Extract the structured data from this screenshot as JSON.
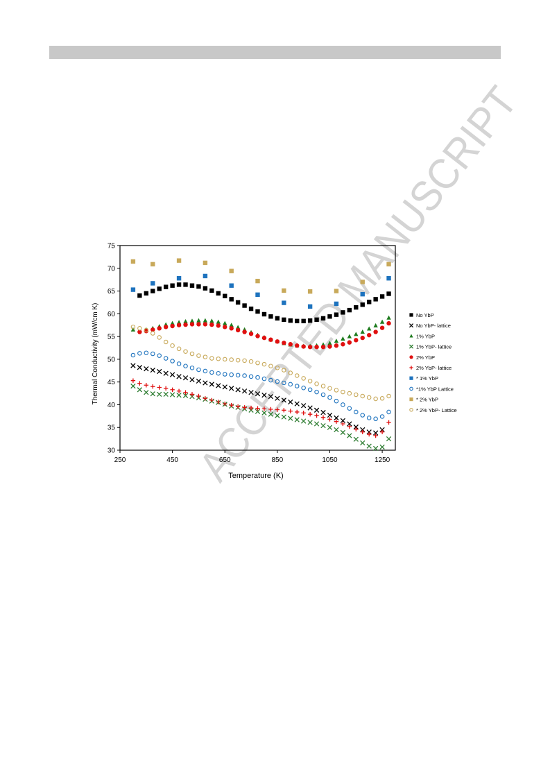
{
  "watermark": {
    "text": "ACCEPTED MANUSCRIPT",
    "color": "#d4d4d4"
  },
  "chart_data": {
    "type": "scatter",
    "title": "",
    "xlabel": "Temperature (K)",
    "ylabel": "Thermal Conductivity (mW/cm K)",
    "xlim": [
      250,
      1300
    ],
    "ylim": [
      30,
      75
    ],
    "xticks": [
      250,
      450,
      650,
      850,
      1050,
      1250
    ],
    "yticks": [
      30,
      35,
      40,
      45,
      50,
      55,
      60,
      65,
      70,
      75
    ],
    "legend_position": "right",
    "grid": false,
    "series": [
      {
        "name": "No YbP",
        "marker": "square",
        "color": "#000000",
        "x": [
          325,
          350,
          375,
          400,
          425,
          450,
          475,
          500,
          525,
          550,
          575,
          600,
          625,
          650,
          675,
          700,
          725,
          750,
          775,
          800,
          825,
          850,
          875,
          900,
          925,
          950,
          975,
          1000,
          1025,
          1050,
          1075,
          1100,
          1125,
          1150,
          1175,
          1200,
          1225,
          1250,
          1275
        ],
        "y": [
          64.0,
          64.5,
          65.0,
          65.5,
          65.9,
          66.2,
          66.4,
          66.4,
          66.2,
          66.0,
          65.6,
          65.1,
          64.5,
          63.9,
          63.2,
          62.5,
          61.8,
          61.1,
          60.5,
          59.9,
          59.4,
          59.0,
          58.7,
          58.5,
          58.4,
          58.4,
          58.5,
          58.7,
          59.0,
          59.4,
          59.8,
          60.3,
          60.8,
          61.4,
          62.0,
          62.6,
          63.2,
          63.8,
          64.4
        ]
      },
      {
        "name": "No YbP- lattice",
        "marker": "x",
        "color": "#000000",
        "x": [
          300,
          325,
          350,
          375,
          400,
          425,
          450,
          475,
          500,
          525,
          550,
          575,
          600,
          625,
          650,
          675,
          700,
          725,
          750,
          775,
          800,
          825,
          850,
          875,
          900,
          925,
          950,
          975,
          1000,
          1025,
          1050,
          1075,
          1100,
          1125,
          1150,
          1175,
          1200,
          1225,
          1250
        ],
        "y": [
          48.6,
          48.2,
          47.9,
          47.6,
          47.3,
          46.9,
          46.6,
          46.2,
          45.9,
          45.5,
          45.2,
          44.8,
          44.5,
          44.2,
          43.9,
          43.6,
          43.3,
          43.0,
          42.7,
          42.4,
          42.1,
          41.8,
          41.4,
          41.0,
          40.6,
          40.2,
          39.8,
          39.3,
          38.8,
          38.3,
          37.7,
          37.1,
          36.5,
          35.8,
          35.1,
          34.5,
          34.0,
          33.8,
          34.5
        ]
      },
      {
        "name": "1% YbP",
        "marker": "triangle",
        "color": "#1e7b1e",
        "x": [
          300,
          350,
          375,
          400,
          425,
          450,
          475,
          500,
          525,
          550,
          575,
          600,
          625,
          650,
          675,
          700,
          725,
          750,
          775,
          800,
          825,
          850,
          875,
          900,
          925,
          950,
          975,
          1000,
          1025,
          1050,
          1075,
          1100,
          1125,
          1150,
          1175,
          1200,
          1225,
          1250,
          1275
        ],
        "y": [
          56.5,
          56.5,
          56.8,
          57.2,
          57.6,
          57.9,
          58.1,
          58.3,
          58.4,
          58.5,
          58.5,
          58.4,
          58.2,
          57.9,
          57.5,
          57.0,
          56.5,
          55.9,
          55.3,
          54.8,
          54.3,
          53.9,
          53.5,
          53.2,
          53.0,
          52.9,
          52.9,
          53.0,
          53.2,
          53.5,
          54.0,
          54.5,
          55.0,
          55.5,
          56.0,
          56.7,
          57.4,
          58.2,
          59.1
        ]
      },
      {
        "name": "1% YbP- lattice",
        "marker": "x",
        "color": "#2e7d32",
        "x": [
          300,
          325,
          350,
          375,
          400,
          425,
          450,
          475,
          500,
          525,
          550,
          575,
          600,
          625,
          650,
          675,
          700,
          725,
          750,
          775,
          800,
          825,
          850,
          875,
          900,
          925,
          950,
          975,
          1000,
          1025,
          1050,
          1075,
          1100,
          1125,
          1150,
          1175,
          1200,
          1225,
          1250,
          1275
        ],
        "y": [
          44.1,
          43.3,
          42.7,
          42.4,
          42.3,
          42.3,
          42.2,
          42.1,
          42.0,
          41.8,
          41.5,
          41.2,
          40.8,
          40.5,
          40.1,
          39.7,
          39.4,
          39.1,
          38.8,
          38.5,
          38.2,
          37.9,
          37.6,
          37.3,
          37.0,
          36.7,
          36.4,
          36.1,
          35.8,
          35.4,
          35.0,
          34.5,
          33.9,
          33.2,
          32.4,
          31.6,
          30.9,
          30.4,
          30.7,
          32.5
        ]
      },
      {
        "name": "2% YbP",
        "marker": "circle-filled",
        "color": "#e01010",
        "x": [
          325,
          350,
          375,
          400,
          425,
          450,
          475,
          500,
          525,
          550,
          575,
          600,
          625,
          650,
          675,
          700,
          725,
          750,
          775,
          800,
          825,
          850,
          875,
          900,
          925,
          950,
          975,
          1000,
          1025,
          1050,
          1075,
          1100,
          1125,
          1150,
          1175,
          1200,
          1225,
          1250,
          1275
        ],
        "y": [
          56.0,
          56.2,
          56.5,
          56.8,
          57.1,
          57.3,
          57.5,
          57.6,
          57.7,
          57.7,
          57.7,
          57.6,
          57.4,
          57.1,
          56.8,
          56.4,
          56.0,
          55.6,
          55.1,
          54.7,
          54.3,
          53.9,
          53.6,
          53.3,
          53.0,
          52.8,
          52.7,
          52.7,
          52.7,
          52.8,
          53.0,
          53.3,
          53.7,
          54.2,
          54.7,
          55.3,
          56.0,
          56.9,
          57.9
        ]
      },
      {
        "name": "2% YbP- lattice",
        "marker": "plus",
        "color": "#e01010",
        "x": [
          300,
          325,
          350,
          375,
          400,
          425,
          450,
          475,
          500,
          525,
          550,
          575,
          600,
          625,
          650,
          675,
          700,
          725,
          750,
          775,
          800,
          825,
          850,
          875,
          900,
          925,
          950,
          975,
          1000,
          1025,
          1050,
          1075,
          1100,
          1125,
          1150,
          1175,
          1200,
          1225,
          1250,
          1275
        ],
        "y": [
          45.3,
          44.7,
          44.3,
          44.0,
          43.8,
          43.6,
          43.3,
          43.0,
          42.7,
          42.3,
          41.9,
          41.4,
          41.0,
          40.6,
          40.2,
          39.9,
          39.6,
          39.4,
          39.3,
          39.2,
          39.1,
          39.0,
          38.9,
          38.8,
          38.6,
          38.4,
          38.2,
          37.9,
          37.6,
          37.2,
          36.8,
          36.3,
          35.8,
          35.2,
          34.6,
          34.0,
          33.5,
          33.2,
          34.0,
          36.1
        ]
      },
      {
        "name": "* 1% YbP",
        "marker": "square",
        "color": "#1e73be",
        "x": [
          300,
          375,
          475,
          575,
          675,
          775,
          875,
          975,
          1075,
          1175,
          1275
        ],
        "y": [
          65.3,
          66.7,
          67.8,
          68.3,
          66.2,
          64.2,
          62.4,
          61.6,
          62.2,
          64.3,
          67.8
        ]
      },
      {
        "name": "*1% YbP Lattice",
        "marker": "circle-open",
        "color": "#1e73be",
        "x": [
          300,
          325,
          350,
          375,
          400,
          425,
          450,
          475,
          500,
          525,
          550,
          575,
          600,
          625,
          650,
          675,
          700,
          725,
          750,
          775,
          800,
          825,
          850,
          875,
          900,
          925,
          950,
          975,
          1000,
          1025,
          1050,
          1075,
          1100,
          1125,
          1150,
          1175,
          1200,
          1225,
          1250,
          1275
        ],
        "y": [
          50.9,
          51.3,
          51.4,
          51.2,
          50.8,
          50.2,
          49.6,
          49.0,
          48.5,
          48.1,
          47.7,
          47.4,
          47.1,
          46.9,
          46.7,
          46.6,
          46.5,
          46.4,
          46.2,
          46.0,
          45.7,
          45.4,
          45.1,
          44.8,
          44.5,
          44.1,
          43.7,
          43.3,
          42.8,
          42.2,
          41.6,
          40.8,
          40.0,
          39.2,
          38.4,
          37.7,
          37.1,
          36.9,
          37.4,
          38.4
        ]
      },
      {
        "name": "* 2% YbP",
        "marker": "square",
        "color": "#c8a95a",
        "x": [
          300,
          375,
          475,
          575,
          675,
          775,
          875,
          975,
          1075,
          1175,
          1275
        ],
        "y": [
          71.5,
          70.9,
          71.7,
          71.2,
          69.4,
          67.2,
          65.1,
          64.9,
          65.0,
          67.0,
          70.9
        ]
      },
      {
        "name": "* 2% YbP- Lattice",
        "marker": "circle-open",
        "color": "#c8a95a",
        "x": [
          300,
          325,
          350,
          375,
          400,
          425,
          450,
          475,
          500,
          525,
          550,
          575,
          600,
          625,
          650,
          675,
          700,
          725,
          750,
          775,
          800,
          825,
          850,
          875,
          900,
          925,
          950,
          975,
          1000,
          1025,
          1050,
          1075,
          1100,
          1125,
          1150,
          1175,
          1200,
          1225,
          1250,
          1275
        ],
        "y": [
          57.1,
          56.8,
          56.4,
          55.7,
          54.8,
          53.8,
          53.0,
          52.3,
          51.7,
          51.2,
          50.8,
          50.5,
          50.2,
          50.1,
          50.0,
          49.9,
          49.8,
          49.7,
          49.5,
          49.2,
          48.9,
          48.5,
          48.1,
          47.6,
          47.0,
          46.4,
          45.8,
          45.2,
          44.6,
          44.1,
          43.6,
          43.2,
          42.8,
          42.5,
          42.2,
          41.9,
          41.6,
          41.3,
          41.4,
          41.9
        ]
      }
    ]
  }
}
